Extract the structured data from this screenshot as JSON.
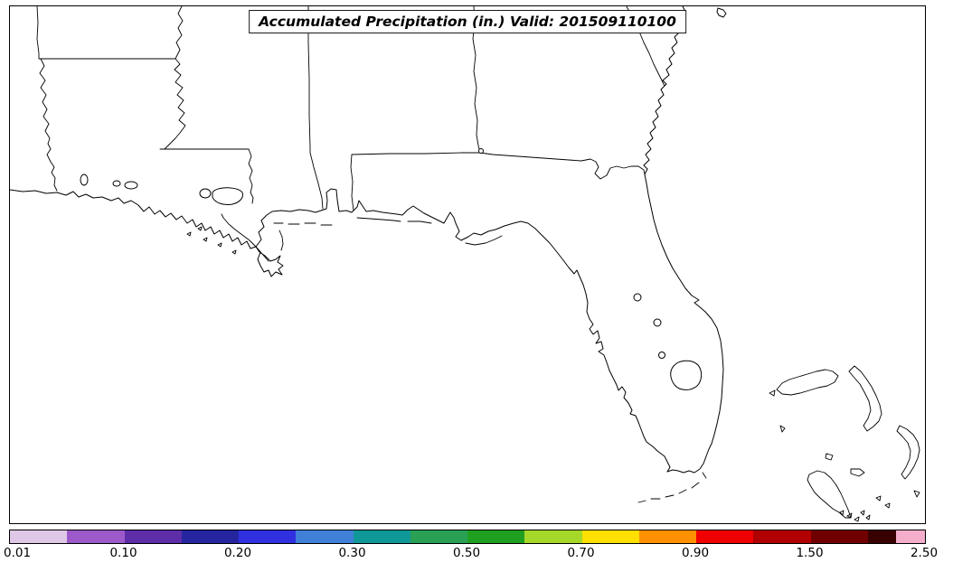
{
  "title": {
    "text": "Accumulated Precipitation (in.) Valid: 201509110100"
  },
  "colorbar": {
    "ticks": [
      {
        "label": "0.01",
        "position": 0.0
      },
      {
        "label": "0.10",
        "position": 0.125
      },
      {
        "label": "0.20",
        "position": 0.25
      },
      {
        "label": "0.30",
        "position": 0.375
      },
      {
        "label": "0.50",
        "position": 0.5
      },
      {
        "label": "0.70",
        "position": 0.625
      },
      {
        "label": "0.90",
        "position": 0.75
      },
      {
        "label": "1.50",
        "position": 0.875
      },
      {
        "label": "2.50",
        "position": 1.0
      }
    ],
    "segments": [
      {
        "color": "#dfc7e6",
        "width": 0.0625
      },
      {
        "color": "#9b59c9",
        "width": 0.0625
      },
      {
        "color": "#5e2da8",
        "width": 0.0625
      },
      {
        "color": "#2525a0",
        "width": 0.0625
      },
      {
        "color": "#3030e0",
        "width": 0.0625
      },
      {
        "color": "#4080d8",
        "width": 0.0625
      },
      {
        "color": "#109898",
        "width": 0.0625
      },
      {
        "color": "#2aa055",
        "width": 0.0625
      },
      {
        "color": "#20a020",
        "width": 0.0625
      },
      {
        "color": "#a6d82a",
        "width": 0.0625
      },
      {
        "color": "#ffe000",
        "width": 0.0625
      },
      {
        "color": "#ff9000",
        "width": 0.0625
      },
      {
        "color": "#f00000",
        "width": 0.0625
      },
      {
        "color": "#b00000",
        "width": 0.0625
      },
      {
        "color": "#700000",
        "width": 0.0625
      },
      {
        "color": "#380000",
        "width": 0.03125
      },
      {
        "color": "#f4aecb",
        "width": 0.03125
      }
    ]
  }
}
